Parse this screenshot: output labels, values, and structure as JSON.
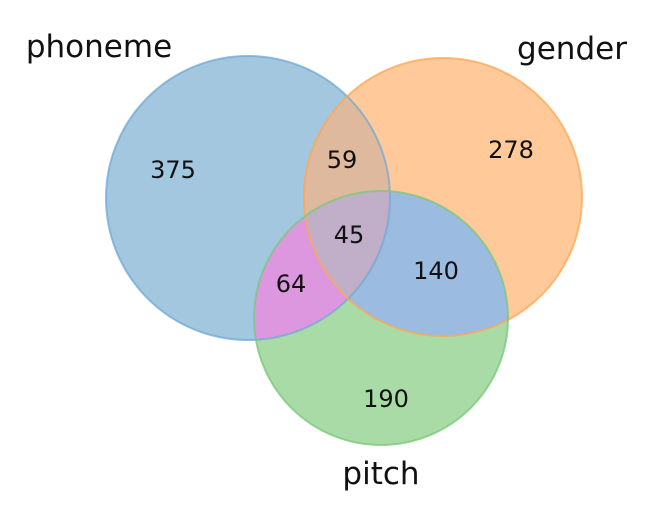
{
  "sets": {
    "a": {
      "label": "phoneme",
      "color": "#6fa8d6"
    },
    "b": {
      "label": "gender",
      "color": "#ffa54f"
    },
    "c": {
      "label": "pitch",
      "color": "#78c778"
    }
  },
  "regions": {
    "a_only": "375",
    "b_only": "278",
    "c_only": "190",
    "ab": "59",
    "ac": "64",
    "bc": "140",
    "abc": "45"
  },
  "region_colors": {
    "a_only": "#a3c7df",
    "b_only": "#ffc99a",
    "c_only": "#a9dba6",
    "ab": "#dfb99e",
    "ac": "#dd97de",
    "bc": "#9bbbe0",
    "abc": "#c1aec8"
  }
}
